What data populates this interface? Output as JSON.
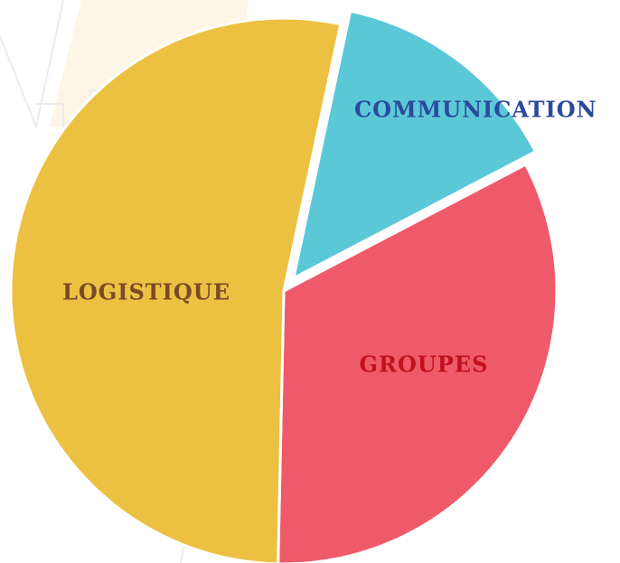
{
  "chart_data": {
    "type": "pie",
    "categories": [
      "COMMUNICATION",
      "GROUPES",
      "LOGISTIQUE"
    ],
    "values": [
      14,
      33,
      53
    ],
    "colors": [
      "#5bc8d8",
      "#ef5a6a",
      "#ecc142"
    ],
    "label_colors": [
      "#2b4a9c",
      "#c0121e",
      "#7a4a28"
    ]
  }
}
